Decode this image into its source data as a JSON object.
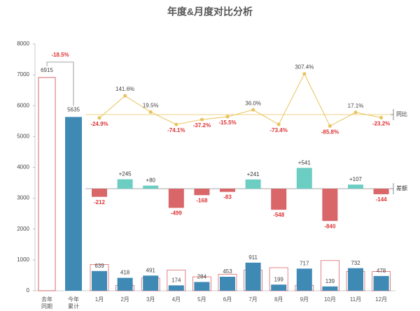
{
  "chart_data": {
    "type": "combo",
    "title": "年度&月度对比分析",
    "ylim": [
      0,
      8000
    ],
    "yticks": [
      0,
      1000,
      2000,
      3000,
      4000,
      5000,
      6000,
      7000,
      8000
    ],
    "annual": {
      "categories": [
        "去年同期",
        "今年累计"
      ],
      "values": [
        6915,
        5635
      ],
      "colors": [
        "#d9676a",
        "#3f8ab5"
      ],
      "change_label": "-18.5%"
    },
    "months": [
      "1月",
      "2月",
      "3月",
      "4月",
      "5月",
      "6月",
      "7月",
      "8月",
      "9月",
      "10月",
      "11月",
      "12月"
    ],
    "last_year": {
      "color": "#d9676a",
      "values": [
        851,
        173,
        411,
        673,
        452,
        536,
        670,
        747,
        176,
        979,
        625,
        622
      ]
    },
    "this_year": {
      "color": "#3f8ab5",
      "values": [
        639,
        418,
        491,
        174,
        284,
        453,
        911,
        199,
        717,
        139,
        732,
        478
      ]
    },
    "difference": {
      "label": "差额",
      "colors": {
        "positive": "#6ccdc3",
        "negative": "#d9676a"
      },
      "values": [
        -212,
        245,
        80,
        -499,
        -168,
        -83,
        241,
        -548,
        541,
        -840,
        107,
        -144
      ],
      "value_labels": [
        "-212",
        "+245",
        "+80",
        "-499",
        "-168",
        "-83",
        "+241",
        "-548",
        "+541",
        "-840",
        "+107",
        "-144"
      ]
    },
    "growth": {
      "label": "同比",
      "color": "#e8c35a",
      "values": [
        -24.9,
        141.6,
        19.5,
        -74.1,
        -37.2,
        -15.5,
        36.0,
        -73.4,
        307.4,
        -85.8,
        17.1,
        -23.2
      ],
      "value_labels": [
        "-24.9%",
        "141.6%",
        "19.5%",
        "-74.1%",
        "-37.2%",
        "-15.5%",
        "36.0%",
        "-73.4%",
        "307.4%",
        "-85.8%",
        "17.1%",
        "-23.2%"
      ]
    }
  }
}
